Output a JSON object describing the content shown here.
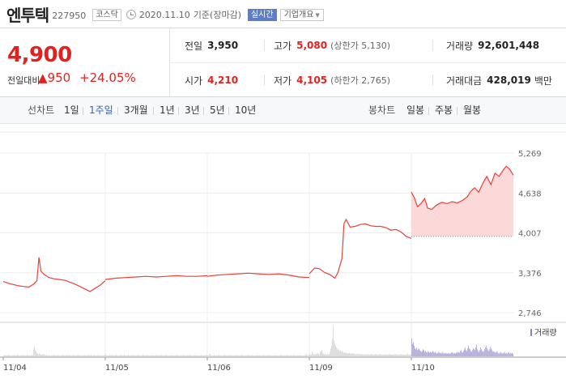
{
  "stock": {
    "name": "엔투텍",
    "code": "227950",
    "market": "코스닥",
    "date": "2020.11.10",
    "basis": "기준(장마감)",
    "live_badge": "실시간",
    "corp_info": "기업개요"
  },
  "quote": {
    "price": "4,900",
    "change_label": "전일대비",
    "change_amount": "▲950",
    "change_rate": "+24.05%"
  },
  "stats": {
    "prev_label": "전일",
    "prev": "3,950",
    "high_label": "고가",
    "high": "5,080",
    "upper_limit": "(상한가 5,130)",
    "volume_label": "거래량",
    "volume": "92,601,448",
    "open_label": "시가",
    "open": "4,210",
    "low_label": "저가",
    "low": "4,105",
    "lower_limit": "(하한가 2,765)",
    "amount_label": "거래대금",
    "amount": "428,019",
    "amount_unit": "백만"
  },
  "tabs": {
    "line_group": "선차트",
    "line_items": [
      "1일",
      "1주일",
      "3개월",
      "1년",
      "3년",
      "5년",
      "10년"
    ],
    "line_active": "1주일",
    "candle_group": "봉차트",
    "candle_items": [
      "일봉",
      "주봉",
      "월봉"
    ]
  },
  "colors": {
    "up": "#e52020",
    "line": "#e8413a",
    "fill": "#fbd9d9",
    "volume_old": "#c9c9c9",
    "volume_recent": "#8f82c8",
    "accent": "#3a5fb8"
  },
  "chart_data": {
    "type": "line",
    "y_ticks": [
      "5,269",
      "4,638",
      "4,007",
      "3,376",
      "2,746"
    ],
    "y_tick_values": [
      5269,
      4638,
      4007,
      3376,
      2746
    ],
    "ylim": [
      2746,
      5269
    ],
    "x_ticks": [
      "11/04",
      "11/05",
      "11/06",
      "11/09",
      "11/10"
    ],
    "volume_legend": "거래량",
    "prev_close": 3950,
    "series": [
      {
        "day": "11/04",
        "points": [
          [
            0,
            3240
          ],
          [
            0.05,
            3210
          ],
          [
            0.1,
            3190
          ],
          [
            0.15,
            3170
          ],
          [
            0.2,
            3160
          ],
          [
            0.25,
            3150
          ],
          [
            0.3,
            3200
          ],
          [
            0.33,
            3250
          ],
          [
            0.35,
            3620
          ],
          [
            0.37,
            3400
          ],
          [
            0.4,
            3350
          ],
          [
            0.45,
            3300
          ],
          [
            0.5,
            3280
          ],
          [
            0.55,
            3270
          ],
          [
            0.6,
            3260
          ],
          [
            0.65,
            3230
          ],
          [
            0.7,
            3200
          ],
          [
            0.75,
            3160
          ],
          [
            0.8,
            3120
          ],
          [
            0.85,
            3080
          ],
          [
            0.9,
            3130
          ],
          [
            0.95,
            3180
          ],
          [
            1,
            3250
          ]
        ]
      },
      {
        "day": "11/05",
        "points": [
          [
            0,
            3270
          ],
          [
            0.1,
            3290
          ],
          [
            0.2,
            3300
          ],
          [
            0.3,
            3310
          ],
          [
            0.4,
            3320
          ],
          [
            0.5,
            3310
          ],
          [
            0.6,
            3320
          ],
          [
            0.7,
            3330
          ],
          [
            0.8,
            3320
          ],
          [
            0.9,
            3320
          ],
          [
            1,
            3330
          ]
        ]
      },
      {
        "day": "11/06",
        "points": [
          [
            0,
            3320
          ],
          [
            0.1,
            3340
          ],
          [
            0.2,
            3350
          ],
          [
            0.3,
            3360
          ],
          [
            0.4,
            3370
          ],
          [
            0.5,
            3360
          ],
          [
            0.6,
            3350
          ],
          [
            0.7,
            3360
          ],
          [
            0.8,
            3340
          ],
          [
            0.9,
            3310
          ],
          [
            1,
            3300
          ]
        ]
      },
      {
        "day": "11/09",
        "points": [
          [
            0,
            3360
          ],
          [
            0.05,
            3450
          ],
          [
            0.1,
            3440
          ],
          [
            0.15,
            3380
          ],
          [
            0.2,
            3350
          ],
          [
            0.25,
            3290
          ],
          [
            0.28,
            3380
          ],
          [
            0.32,
            3600
          ],
          [
            0.34,
            4150
          ],
          [
            0.36,
            4220
          ],
          [
            0.4,
            4100
          ],
          [
            0.45,
            4110
          ],
          [
            0.5,
            4140
          ],
          [
            0.55,
            4150
          ],
          [
            0.6,
            4120
          ],
          [
            0.65,
            4110
          ],
          [
            0.7,
            4110
          ],
          [
            0.75,
            4090
          ],
          [
            0.8,
            4050
          ],
          [
            0.85,
            4060
          ],
          [
            0.9,
            4020
          ],
          [
            0.95,
            3950
          ],
          [
            1,
            3920
          ]
        ]
      },
      {
        "day": "11/10",
        "points": [
          [
            0,
            4650
          ],
          [
            0.03,
            4560
          ],
          [
            0.06,
            4420
          ],
          [
            0.1,
            4480
          ],
          [
            0.13,
            4550
          ],
          [
            0.16,
            4400
          ],
          [
            0.2,
            4380
          ],
          [
            0.25,
            4450
          ],
          [
            0.3,
            4490
          ],
          [
            0.35,
            4470
          ],
          [
            0.4,
            4500
          ],
          [
            0.45,
            4480
          ],
          [
            0.5,
            4520
          ],
          [
            0.55,
            4580
          ],
          [
            0.58,
            4660
          ],
          [
            0.62,
            4720
          ],
          [
            0.66,
            4650
          ],
          [
            0.7,
            4790
          ],
          [
            0.74,
            4900
          ],
          [
            0.78,
            4770
          ],
          [
            0.82,
            4950
          ],
          [
            0.86,
            4900
          ],
          [
            0.9,
            5000
          ],
          [
            0.93,
            5060
          ],
          [
            0.96,
            5020
          ],
          [
            1,
            4920
          ]
        ]
      }
    ],
    "volume": {
      "days": [
        {
          "day": "11/04",
          "bars": [
            1,
            1,
            2,
            1,
            1,
            1,
            2,
            1,
            1,
            1,
            1,
            1,
            1,
            2,
            1,
            1,
            1,
            2,
            1,
            1,
            1,
            1,
            1,
            1,
            2,
            1,
            1,
            1,
            1,
            2,
            1,
            1,
            1,
            1,
            1,
            2,
            1,
            8,
            11,
            7,
            6,
            4,
            3,
            2,
            3,
            3,
            2,
            2,
            2,
            3,
            2,
            2,
            1,
            2,
            1,
            1,
            2,
            1,
            1,
            1,
            1,
            1,
            2,
            1,
            1,
            1,
            1,
            2,
            1,
            1,
            1,
            1,
            1,
            2,
            1,
            1,
            1,
            1,
            2,
            1,
            1,
            2,
            1,
            1,
            1,
            1,
            2,
            1,
            1,
            1,
            1,
            1,
            2,
            1,
            1,
            1,
            1,
            1,
            1,
            2,
            1,
            1,
            1,
            1,
            2,
            1,
            1,
            2,
            1,
            1,
            1,
            2,
            1,
            1,
            1,
            1,
            2,
            1,
            1,
            1,
            1,
            1,
            1,
            1,
            2
          ]
        },
        {
          "day": "11/05",
          "bars": [
            2,
            1,
            1,
            1,
            1,
            2,
            1,
            1,
            2,
            1,
            1,
            1,
            1,
            2,
            1,
            1,
            1,
            1,
            1,
            2,
            1,
            1,
            1,
            2,
            1,
            1,
            1,
            1,
            2,
            1,
            1,
            1,
            1,
            1,
            2,
            1,
            1,
            1,
            1,
            1,
            2,
            1,
            1,
            1,
            1,
            1,
            2,
            1,
            1,
            1,
            1,
            2,
            1,
            1,
            1,
            1,
            1,
            1,
            2,
            1,
            1,
            1,
            2,
            1,
            1,
            1,
            1,
            1,
            2,
            1,
            1,
            1,
            1,
            1,
            2,
            1,
            1,
            1,
            1,
            1,
            1,
            2,
            1,
            1,
            1,
            1,
            1,
            2,
            1,
            1,
            1,
            1,
            1,
            1,
            1,
            1,
            2,
            1,
            1,
            1,
            1,
            1,
            1,
            2,
            1,
            1,
            1,
            1,
            1,
            2,
            1,
            1,
            1,
            1,
            1,
            1,
            1,
            2,
            1,
            1,
            1,
            1,
            1,
            2,
            1
          ]
        },
        {
          "day": "11/06",
          "bars": [
            1,
            1,
            2,
            3,
            1,
            1,
            1,
            1,
            2,
            1,
            1,
            1,
            1,
            1,
            2,
            1,
            1,
            1,
            1,
            1,
            1,
            2,
            1,
            1,
            1,
            1,
            1,
            2,
            1,
            1,
            1,
            1,
            1,
            1,
            1,
            2,
            1,
            1,
            1,
            1,
            1,
            1,
            2,
            1,
            1,
            1,
            1,
            1,
            1,
            1,
            2,
            1,
            1,
            1,
            1,
            2,
            1,
            1,
            1,
            1,
            1,
            2,
            1,
            1,
            1,
            1,
            1,
            1,
            2,
            1,
            1,
            1,
            1,
            1,
            1,
            2,
            1,
            1,
            1,
            1,
            1,
            1,
            1,
            2,
            1,
            1,
            1,
            1,
            1,
            1,
            2,
            1,
            1,
            1,
            1,
            1,
            1,
            1,
            2,
            1,
            1,
            1,
            1,
            1,
            1,
            1,
            2,
            1,
            1,
            1,
            1,
            1,
            1,
            2,
            1,
            1,
            1,
            1,
            1,
            1,
            2,
            3,
            1,
            1,
            1
          ]
        },
        {
          "day": "11/09",
          "bars": [
            3,
            2,
            2,
            5,
            3,
            2,
            2,
            3,
            2,
            4,
            3,
            3,
            2,
            5,
            6,
            7,
            4,
            3,
            2,
            3,
            2,
            2,
            2,
            3,
            2,
            5,
            9,
            12,
            20,
            35,
            18,
            14,
            12,
            10,
            8,
            9,
            7,
            6,
            7,
            5,
            6,
            5,
            4,
            5,
            4,
            4,
            3,
            4,
            3,
            4,
            3,
            3,
            3,
            4,
            3,
            3,
            3,
            2,
            3,
            3,
            2,
            3,
            2,
            3,
            2,
            3,
            2,
            2,
            2,
            3,
            2,
            2,
            3,
            2,
            2,
            2,
            3,
            2,
            2,
            2,
            2,
            3,
            2,
            2,
            2,
            2,
            3,
            2,
            2,
            2,
            2,
            2,
            3,
            2,
            2,
            2,
            2,
            2,
            3,
            2,
            2,
            2,
            2,
            2,
            2,
            3,
            2,
            2,
            2,
            2,
            2,
            2,
            3,
            2,
            2,
            2,
            2,
            2,
            2,
            2,
            3,
            2,
            2,
            2,
            2
          ]
        },
        {
          "day": "11/10",
          "bars": [
            20,
            14,
            16,
            12,
            9,
            8,
            10,
            7,
            8,
            9,
            7,
            6,
            5,
            6,
            8,
            7,
            5,
            6,
            5,
            4,
            6,
            5,
            4,
            5,
            4,
            5,
            6,
            5,
            4,
            5,
            4,
            3,
            4,
            5,
            4,
            4,
            3,
            4,
            5,
            3,
            4,
            3,
            4,
            3,
            3,
            4,
            3,
            3,
            4,
            5,
            4,
            3,
            4,
            3,
            4,
            5,
            4,
            5,
            4,
            6,
            7,
            5,
            4,
            6,
            8,
            10,
            7,
            6,
            9,
            12,
            9,
            8,
            6,
            5,
            7,
            9,
            8,
            7,
            10,
            13,
            8,
            6,
            5,
            7,
            10,
            8,
            6,
            5,
            6,
            8,
            10,
            12,
            9,
            7,
            6,
            8,
            11,
            9,
            7,
            5,
            6,
            5,
            4,
            5,
            6,
            4,
            3,
            4,
            5,
            3,
            4,
            3,
            4,
            5,
            3,
            4,
            3,
            4,
            5,
            3,
            4,
            3,
            4,
            3
          ]
        }
      ]
    }
  }
}
